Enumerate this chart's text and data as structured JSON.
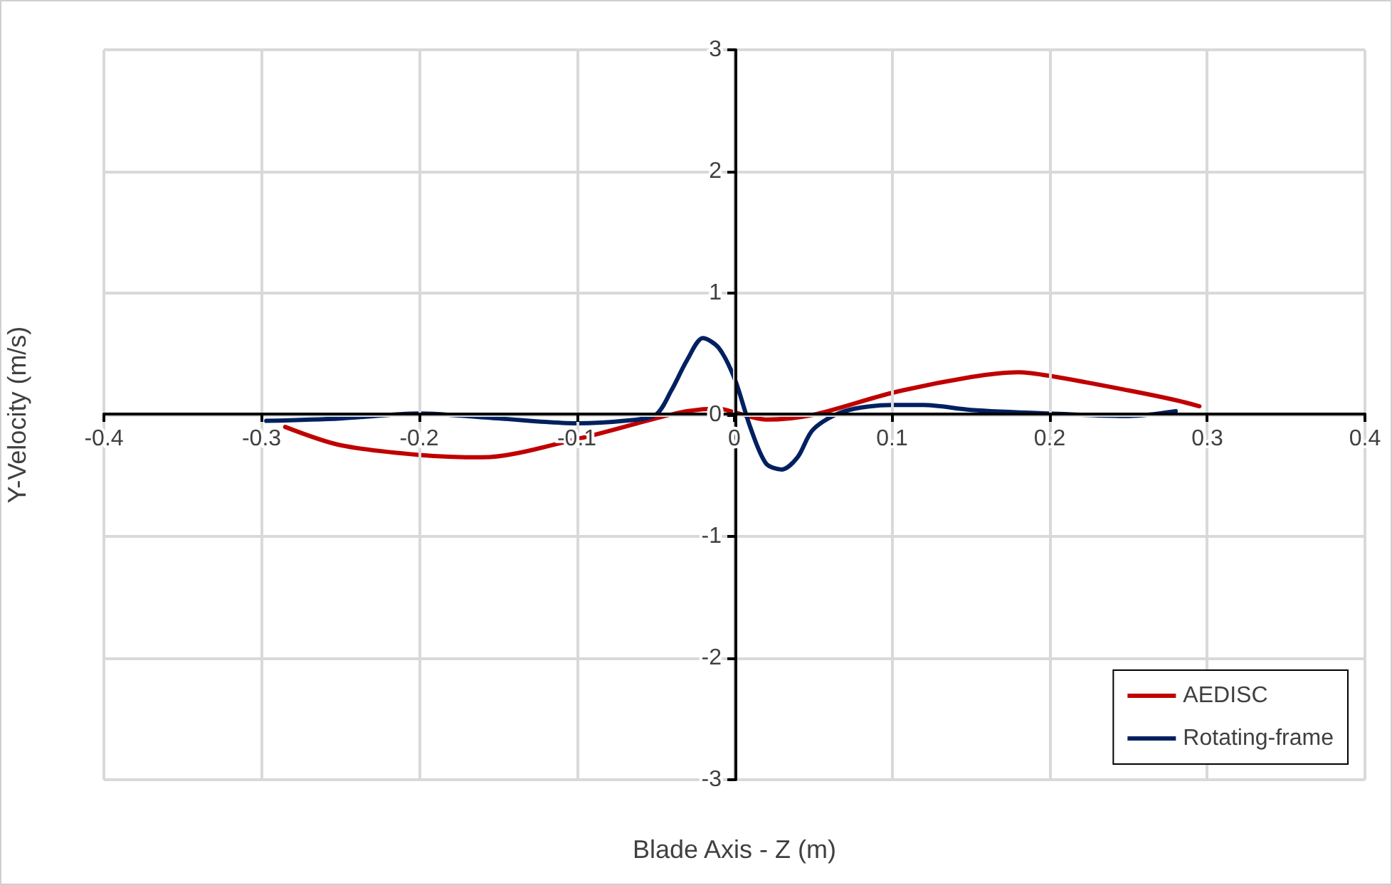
{
  "chart_data": {
    "type": "line",
    "xlabel": "Blade Axis - Z (m)",
    "ylabel": "Y-Velocity (m/s)",
    "xlim": [
      -0.4,
      0.4
    ],
    "xticks": [
      -0.4,
      -0.3,
      -0.2,
      -0.1,
      0,
      0.1,
      0.2,
      0.3,
      0.4
    ],
    "ylim": [
      -3,
      3
    ],
    "yticks": [
      -3,
      -2,
      -1,
      0,
      1,
      2,
      3
    ],
    "grid": true,
    "legend": "bottom right",
    "marker": "none",
    "line_style": "solid",
    "series": [
      {
        "name": "AEDISC",
        "color": "#c00000",
        "x": [
          -0.285,
          -0.25,
          -0.2,
          -0.16,
          -0.1,
          -0.05,
          -0.03,
          -0.01,
          0,
          0.02,
          0.05,
          0.1,
          0.15,
          0.18,
          0.2,
          0.25,
          0.28,
          0.295
        ],
        "values": [
          -0.1,
          -0.25,
          -0.33,
          -0.35,
          -0.2,
          -0.03,
          0.03,
          0.05,
          0.02,
          -0.04,
          0,
          0.18,
          0.31,
          0.35,
          0.32,
          0.2,
          0.12,
          0.07
        ]
      },
      {
        "name": "Rotating-frame",
        "color": "#002060",
        "x": [
          -0.297,
          -0.25,
          -0.2,
          -0.15,
          -0.1,
          -0.07,
          -0.05,
          -0.04,
          -0.03,
          -0.02,
          -0.01,
          0,
          0.01,
          0.02,
          0.03,
          0.04,
          0.05,
          0.07,
          0.1,
          0.12,
          0.15,
          0.2,
          0.25,
          0.28
        ],
        "values": [
          -0.05,
          -0.03,
          0.01,
          -0.03,
          -0.07,
          -0.05,
          0,
          0.2,
          0.45,
          0.63,
          0.55,
          0.3,
          -0.1,
          -0.4,
          -0.45,
          -0.35,
          -0.12,
          0.03,
          0.08,
          0.08,
          0.04,
          0.01,
          -0.01,
          0.03
        ]
      }
    ]
  }
}
